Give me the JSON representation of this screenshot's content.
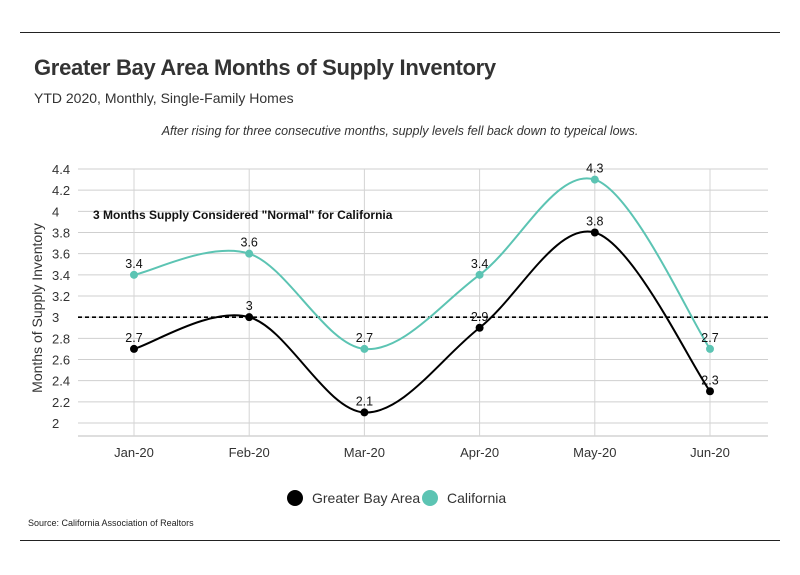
{
  "header": {
    "title": "Greater Bay Area Months of Supply Inventory",
    "subtitle": "YTD 2020, Monthly, Single-Family Homes",
    "annotation": "After rising for three consecutive months, supply levels fell back down to typeical lows."
  },
  "footer": {
    "source": "Source:  California Association of Realtors"
  },
  "chart_data": {
    "type": "line",
    "title": "Greater Bay Area Months of Supply Inventory",
    "subtitle": "YTD 2020, Monthly, Single-Family Homes",
    "xlabel": "",
    "ylabel": "Months of Supply Inventory",
    "categories": [
      "Jan-20",
      "Feb-20",
      "Mar-20",
      "Apr-20",
      "May-20",
      "Jun-20"
    ],
    "ylim": [
      2,
      4.4
    ],
    "yticks": [
      "2",
      "2.2",
      "2.4",
      "2.6",
      "2.8",
      "3",
      "3.2",
      "3.4",
      "3.6",
      "3.8",
      "4",
      "4.2",
      "4.4"
    ],
    "grid": true,
    "smooth": true,
    "legend_position": "bottom",
    "series": [
      {
        "name": "Greater Bay Area",
        "color": "#000000",
        "values": [
          2.7,
          3,
          2.1,
          2.9,
          3.8,
          2.3
        ],
        "labels": [
          "2.7",
          "3",
          "2.1",
          "2.9",
          "3.8",
          "2.3"
        ]
      },
      {
        "name": "California",
        "color": "#5cc4b3",
        "values": [
          3.4,
          3.6,
          2.7,
          3.4,
          4.3,
          2.7
        ],
        "labels": [
          "3.4",
          "3.6",
          "2.7",
          "3.4",
          "4.3",
          "2.7"
        ]
      }
    ],
    "reference_line": {
      "value": 3,
      "label": "3 Months Supply Considered \"Normal\" for California",
      "style": "dashed"
    }
  }
}
